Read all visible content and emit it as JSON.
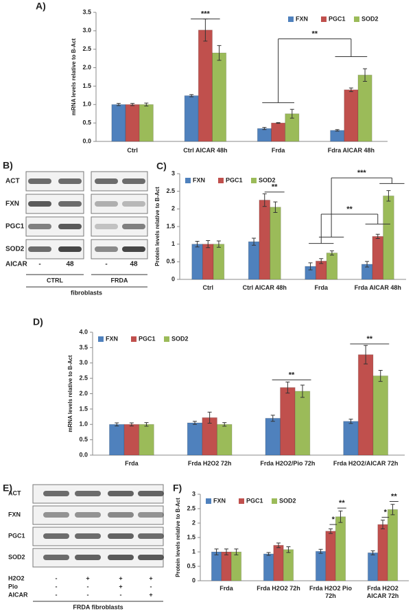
{
  "chart_data": [
    {
      "type": "bar",
      "title": "A)",
      "y_label": "mRNA levels relative to B-Act",
      "categories": [
        "Ctrl",
        "Ctrl AICAR 48h",
        "Frda",
        "Fdra AICAR 48h"
      ],
      "series": [
        {
          "name": "FXN",
          "color": "#4f81bd",
          "values": [
            1.0,
            1.24,
            0.35,
            0.3
          ],
          "errors": [
            0.03,
            0.03,
            0.03,
            0.02
          ]
        },
        {
          "name": "PGC1",
          "color": "#c0504d",
          "values": [
            1.0,
            3.02,
            0.5,
            1.4
          ],
          "errors": [
            0.03,
            0.3,
            0.01,
            0.05
          ]
        },
        {
          "name": "SOD2",
          "color": "#9bbb59",
          "values": [
            1.0,
            2.4,
            0.75,
            1.8
          ],
          "errors": [
            0.04,
            0.2,
            0.12,
            0.17
          ]
        }
      ],
      "ylim": [
        0,
        3.5
      ],
      "yticks": [
        {
          "value": 0,
          "label": "0.0"
        },
        0.5,
        {
          "value": 1,
          "label": "1.0"
        },
        1.5,
        {
          "value": 2,
          "label": "2.0"
        },
        2.5,
        {
          "value": 3,
          "label": "3.0"
        },
        3.5
      ],
      "legend": "top-right",
      "annotations": [
        "***",
        "**"
      ]
    },
    {
      "type": "bar",
      "title": "C)",
      "y_label": "Protein levels relative to B-Act",
      "categories": [
        "Ctrl",
        "Ctrl AICAR 48h",
        "Frda",
        "Frda AICAR 48h"
      ],
      "series": [
        {
          "name": "FXN",
          "color": "#4f81bd",
          "values": [
            1.0,
            1.07,
            0.37,
            0.43
          ],
          "errors": [
            0.08,
            0.1,
            0.1,
            0.08
          ]
        },
        {
          "name": "PGC1",
          "color": "#c0504d",
          "values": [
            1.0,
            2.25,
            0.52,
            1.22
          ],
          "errors": [
            0.1,
            0.18,
            0.07,
            0.06
          ]
        },
        {
          "name": "SOD2",
          "color": "#9bbb59",
          "values": [
            1.0,
            2.05,
            0.75,
            2.37
          ],
          "errors": [
            0.09,
            0.15,
            0.06,
            0.15
          ]
        }
      ],
      "ylim": [
        0,
        3
      ],
      "yticks": [
        0,
        0.5,
        1,
        1.5,
        2,
        2.5,
        3
      ],
      "legend": "top-left",
      "annotations": [
        "**",
        "**",
        "***"
      ]
    },
    {
      "type": "bar",
      "title": "D)",
      "y_label": "mRNA levels relative to B-Act",
      "categories": [
        "Frda",
        "Frda H2O2 72h",
        "Frda H2O2/Pio 72h",
        "Frda H2O2/AICAR 72h"
      ],
      "series": [
        {
          "name": "FXN",
          "color": "#4f81bd",
          "values": [
            1.0,
            1.05,
            1.2,
            1.1
          ],
          "errors": [
            0.05,
            0.05,
            0.1,
            0.07
          ]
        },
        {
          "name": "PGC1",
          "color": "#c0504d",
          "values": [
            1.0,
            1.22,
            2.2,
            3.27
          ],
          "errors": [
            0.05,
            0.18,
            0.18,
            0.3
          ]
        },
        {
          "name": "SOD2",
          "color": "#9bbb59",
          "values": [
            1.0,
            1.0,
            2.08,
            2.58
          ],
          "errors": [
            0.06,
            0.06,
            0.2,
            0.18
          ]
        }
      ],
      "ylim": [
        0,
        4
      ],
      "yticks": [
        {
          "value": 0,
          "label": "0.0"
        },
        0.5,
        {
          "value": 1,
          "label": "1.0"
        },
        1.5,
        {
          "value": 2,
          "label": "2.0"
        },
        2.5,
        {
          "value": 3,
          "label": "3.0"
        },
        3.5,
        {
          "value": 4,
          "label": "4.0"
        }
      ],
      "legend": "top-left",
      "annotations": [
        "**",
        "**"
      ]
    },
    {
      "type": "bar",
      "title": "F)",
      "y_label": "Protein levels relative to B-Act",
      "categories": [
        "Frda",
        "Frda H2O2 72h",
        "Frda H2O2 Pio 72h",
        "Frda H2O2 AICAR 72h"
      ],
      "series": [
        {
          "name": "FXN",
          "color": "#4f81bd",
          "values": [
            1.0,
            0.93,
            1.02,
            0.97
          ],
          "errors": [
            0.1,
            0.05,
            0.07,
            0.07
          ]
        },
        {
          "name": "PGC1",
          "color": "#c0504d",
          "values": [
            1.0,
            1.23,
            1.72,
            1.95
          ],
          "errors": [
            0.1,
            0.08,
            0.08,
            0.15
          ]
        },
        {
          "name": "SOD2",
          "color": "#9bbb59",
          "values": [
            1.0,
            1.08,
            2.22,
            2.47
          ],
          "errors": [
            0.1,
            0.1,
            0.2,
            0.18
          ]
        }
      ],
      "ylim": [
        0,
        3
      ],
      "yticks": [
        0,
        0.5,
        1,
        1.5,
        2,
        2.5,
        3
      ],
      "legend": "top-left",
      "annotations": [
        "*",
        "**",
        "*",
        "**"
      ]
    }
  ],
  "blot_b": {
    "label": "B)",
    "rows": [
      "ACT",
      "FXN",
      "PGC1",
      "SOD2"
    ],
    "treatment_label": "AICAR",
    "treatment": [
      "-",
      "48",
      "-",
      "48"
    ],
    "groups": [
      "CTRL",
      "FRDA"
    ],
    "caption": "fibroblasts"
  },
  "blot_e": {
    "label": "E)",
    "rows": [
      "ACT",
      "FXN",
      "PGC1",
      "SOD2"
    ],
    "treatments": [
      {
        "label": "H2O2",
        "values": [
          "-",
          "+",
          "+",
          "+"
        ]
      },
      {
        "label": "Pio",
        "values": [
          "-",
          "-",
          "+",
          "-"
        ]
      },
      {
        "label": "AICAR",
        "values": [
          "-",
          "-",
          "-",
          "+"
        ]
      }
    ],
    "caption": "FRDA fibroblasts"
  }
}
